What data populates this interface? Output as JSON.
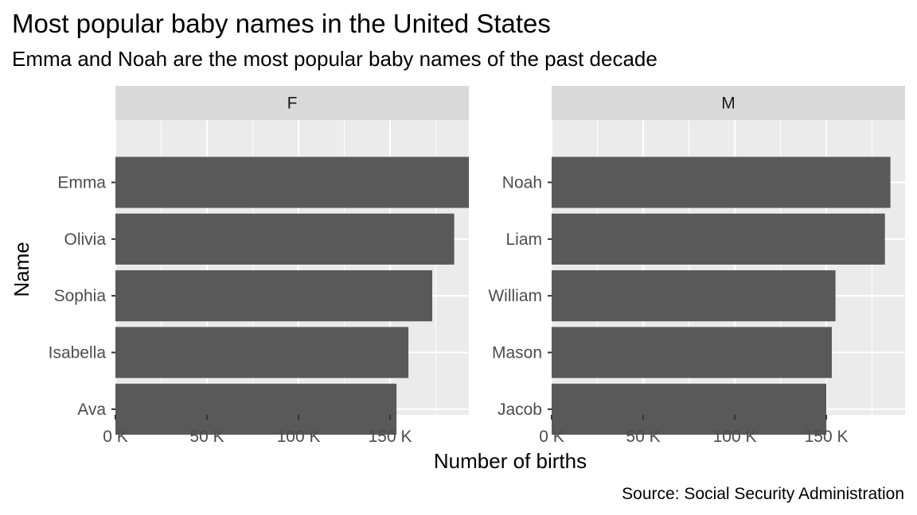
{
  "chart_data": {
    "type": "bar",
    "orientation": "horizontal",
    "faceted": true,
    "title": "Most popular baby names in the United States",
    "subtitle": "Emma and Noah are the most popular baby names of the past decade",
    "xlabel": "Number of births",
    "ylabel": "Name",
    "caption": "Source: Social Security Administration",
    "xlim": [
      0,
      193000
    ],
    "x_ticks": [
      0,
      50000,
      100000,
      150000
    ],
    "x_tick_labels": [
      "0 K",
      "50 K",
      "100 K",
      "150 K"
    ],
    "grid": true,
    "legend": "none",
    "colors": {
      "bar": "#595959",
      "panel_background": "#ebebeb",
      "strip_background": "#d9d9d9",
      "grid": "#ffffff"
    },
    "panels": [
      {
        "label": "F",
        "categories": [
          "Emma",
          "Olivia",
          "Sophia",
          "Isabella",
          "Ava"
        ],
        "values": [
          194000,
          185000,
          173000,
          160000,
          153500
        ]
      },
      {
        "label": "M",
        "categories": [
          "Noah",
          "Liam",
          "William",
          "Mason",
          "Jacob"
        ],
        "values": [
          185000,
          182000,
          155000,
          153000,
          150000
        ]
      }
    ]
  }
}
